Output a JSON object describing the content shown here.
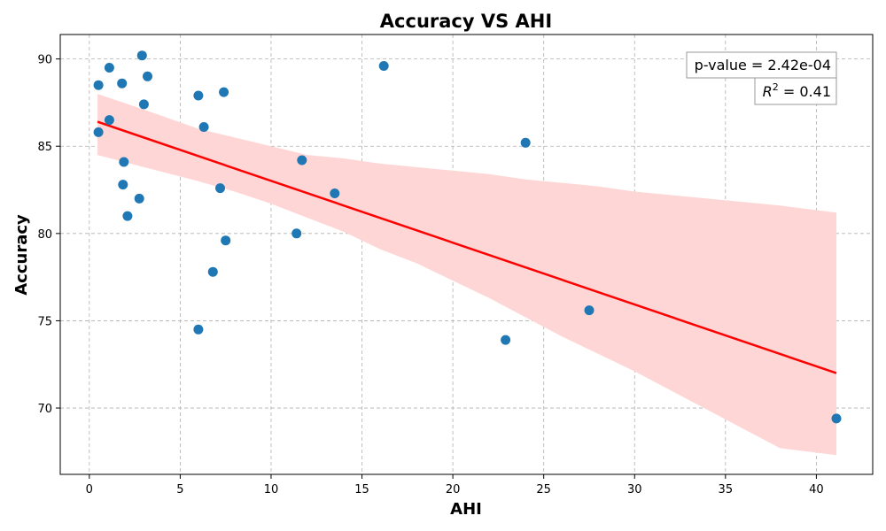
{
  "chart_data": {
    "type": "scatter",
    "title": "Accuracy VS AHI",
    "xlabel": "AHI",
    "ylabel": "Accuracy",
    "xlim": [
      -1.6,
      43.1
    ],
    "ylim": [
      66.2,
      91.4
    ],
    "xticks": [
      0,
      5,
      10,
      15,
      20,
      25,
      30,
      35,
      40
    ],
    "yticks": [
      70,
      75,
      80,
      85,
      90
    ],
    "grid": true,
    "points_color": "#1f77b4",
    "fit_color": "#ff0000",
    "band_color": "#ffd6d6",
    "points": [
      {
        "x": 0.5,
        "y": 88.5
      },
      {
        "x": 1.1,
        "y": 89.5
      },
      {
        "x": 2.9,
        "y": 90.2
      },
      {
        "x": 1.8,
        "y": 88.6
      },
      {
        "x": 3.2,
        "y": 89.0
      },
      {
        "x": 3.0,
        "y": 87.4
      },
      {
        "x": 1.1,
        "y": 86.5
      },
      {
        "x": 0.5,
        "y": 85.8
      },
      {
        "x": 1.9,
        "y": 84.1
      },
      {
        "x": 1.85,
        "y": 82.8
      },
      {
        "x": 2.75,
        "y": 82.0
      },
      {
        "x": 2.1,
        "y": 81.0
      },
      {
        "x": 6.0,
        "y": 87.9
      },
      {
        "x": 7.4,
        "y": 88.1
      },
      {
        "x": 6.3,
        "y": 86.1
      },
      {
        "x": 7.2,
        "y": 82.6
      },
      {
        "x": 7.5,
        "y": 79.6
      },
      {
        "x": 6.8,
        "y": 77.8
      },
      {
        "x": 6.0,
        "y": 74.5
      },
      {
        "x": 11.7,
        "y": 84.2
      },
      {
        "x": 11.4,
        "y": 80.0
      },
      {
        "x": 13.5,
        "y": 82.3
      },
      {
        "x": 16.2,
        "y": 89.6
      },
      {
        "x": 24.0,
        "y": 85.2
      },
      {
        "x": 22.9,
        "y": 73.9
      },
      {
        "x": 27.5,
        "y": 75.6
      },
      {
        "x": 41.1,
        "y": 69.4
      }
    ],
    "fit_line": {
      "x": [
        0.45,
        41.1
      ],
      "y": [
        86.4,
        72.0
      ]
    },
    "confidence_band": {
      "x": [
        0.45,
        3,
        6,
        8,
        10,
        12,
        14,
        16,
        18,
        20,
        22,
        24,
        26,
        28,
        30,
        32,
        34,
        36,
        38,
        41.1
      ],
      "upper": [
        88.0,
        87.1,
        86.0,
        85.5,
        85.0,
        84.5,
        84.3,
        84.0,
        83.8,
        83.6,
        83.4,
        83.1,
        82.9,
        82.7,
        82.4,
        82.2,
        82.0,
        81.8,
        81.6,
        81.2
      ],
      "lower": [
        84.5,
        83.8,
        83.0,
        82.4,
        81.7,
        80.9,
        80.1,
        79.1,
        78.3,
        77.3,
        76.3,
        75.2,
        74.1,
        73.1,
        72.1,
        71.0,
        69.9,
        68.8,
        67.7,
        67.3
      ]
    },
    "annotations": {
      "pvalue": "p-value = 2.42e-04",
      "r2_label": "R",
      "r2_exp": "2",
      "r2_value": " = 0.41"
    }
  }
}
